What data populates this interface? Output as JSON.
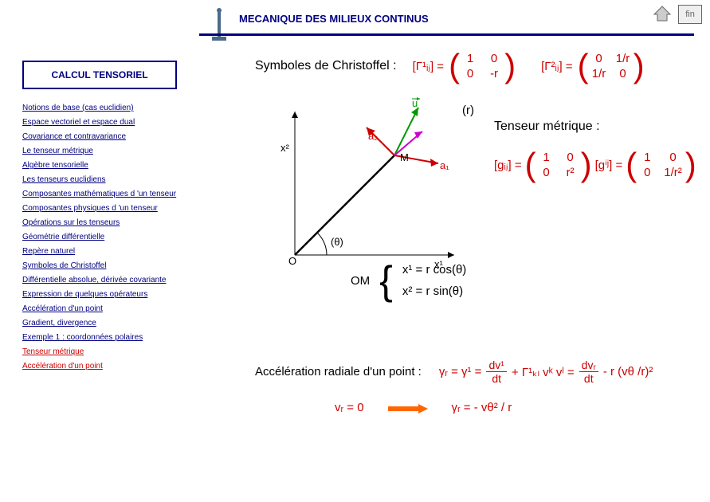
{
  "header": {
    "title": "MECANIQUE DES MILIEUX CONTINUS",
    "fin": "fin"
  },
  "sidebar": {
    "box_title": "CALCUL TENSORIEL",
    "items": [
      {
        "label": "Notions de base (cas euclidien)",
        "red": false
      },
      {
        "label": "Espace vectoriel et espace dual",
        "red": false
      },
      {
        "label": "Covariance et contravariance",
        "red": false
      },
      {
        "label": "Le tenseur métrique",
        "red": false
      },
      {
        "label": "Algèbre tensorielle",
        "red": false
      },
      {
        "label": "Les tenseurs euclidiens",
        "red": false
      },
      {
        "label": "Composantes mathématiques d 'un tenseur",
        "red": false
      },
      {
        "label": "Composantes physiques d 'un tenseur",
        "red": false
      },
      {
        "label": "Opérations sur les tenseurs",
        "red": false
      },
      {
        "label": "Géométrie différentielle",
        "red": false
      },
      {
        "label": "Repère naturel",
        "red": false
      },
      {
        "label": "Symboles de Christoffel",
        "red": false
      },
      {
        "label": "Différentielle absolue, dérivée covariante",
        "red": false
      },
      {
        "label": "Expression de quelques opérateurs",
        "red": false
      },
      {
        "label": "Accélération d'un point",
        "red": false
      },
      {
        "label": "Gradient, divergence",
        "red": false
      },
      {
        "label": "Exemple 1 : coordonnées polaires",
        "red": false
      },
      {
        "label": "Tenseur métrique",
        "red": true
      },
      {
        "label": "Accélération d'un point",
        "red": true
      }
    ]
  },
  "content": {
    "christoffel_title": "Symboles de Christoffel :",
    "gamma1": "[Γ¹ᵢⱼ] =",
    "m1": {
      "a": "1",
      "b": "0",
      "c": "0",
      "d": "-r"
    },
    "gamma2": "[Γ²ᵢⱼ] =",
    "m2": {
      "a": "0",
      "b": "1/r",
      "c": "1/r",
      "d": "0"
    },
    "r_label": "(r)",
    "tensor_title": "Tenseur métrique :",
    "g_low": "[gᵢⱼ] =",
    "g_low_m": {
      "a": "1",
      "b": "0",
      "c": "0",
      "d": "r²"
    },
    "g_up": "[gⁱʲ] =",
    "g_up_m": {
      "a": "1",
      "b": "0",
      "c": "0",
      "d": "1/r²"
    },
    "diagram": {
      "x2": "x²",
      "x1": "x¹",
      "O": "O",
      "M": "M",
      "theta": "(θ)",
      "u": "u",
      "a1": "a₁",
      "a2": "a₂"
    },
    "om_label": "OM",
    "om_eq1": "x¹ = r cos(θ)",
    "om_eq2": "x² = r sin(θ)",
    "accel_title": "Accélération radiale d'un point :",
    "accel_eq1_a": "γᵣ = γ¹ =",
    "accel_eq1_frac1_num": "dv¹",
    "accel_eq1_frac1_den": "dt",
    "accel_eq1_b": "+ Γ¹ₖₗ vᵏ vˡ =",
    "accel_eq1_frac2_num": "dvᵣ",
    "accel_eq1_frac2_den": "dt",
    "accel_eq1_c": " - r (vθ /r)²",
    "accel_vr": "vᵣ = 0",
    "accel_result": "γᵣ = - vθ² / r"
  },
  "colors": {
    "navy": "#000080",
    "red": "#cc0000",
    "green": "#009900",
    "orange": "#ff6600",
    "magenta": "#cc00cc"
  }
}
